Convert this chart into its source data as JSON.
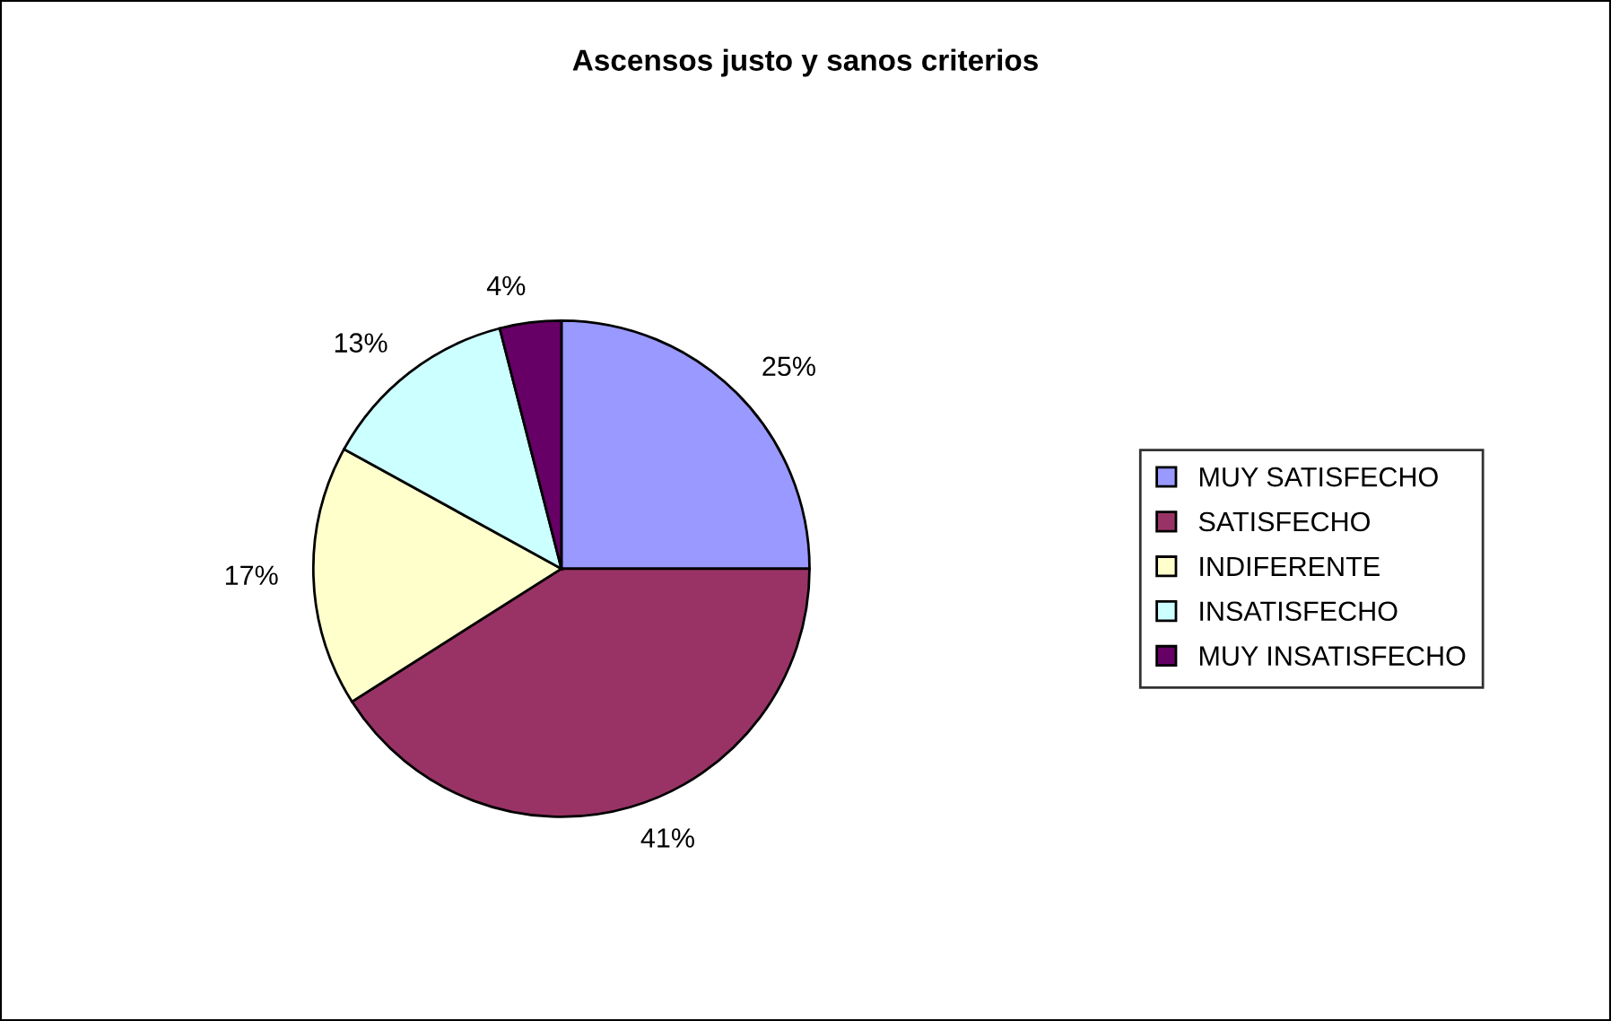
{
  "chart_data": {
    "type": "pie",
    "title": "Ascensos justo y sanos criterios",
    "categories": [
      "MUY SATISFECHO",
      "SATISFECHO",
      "INDIFERENTE",
      "INSATISFECHO",
      "MUY INSATISFECHO"
    ],
    "values": [
      25,
      41,
      17,
      13,
      4
    ],
    "colors": [
      "#9999ff",
      "#993366",
      "#ffffcc",
      "#ccffff",
      "#660066"
    ],
    "value_labels": [
      "25%",
      "41%",
      "17%",
      "13%",
      "4%"
    ],
    "legend": "right"
  }
}
